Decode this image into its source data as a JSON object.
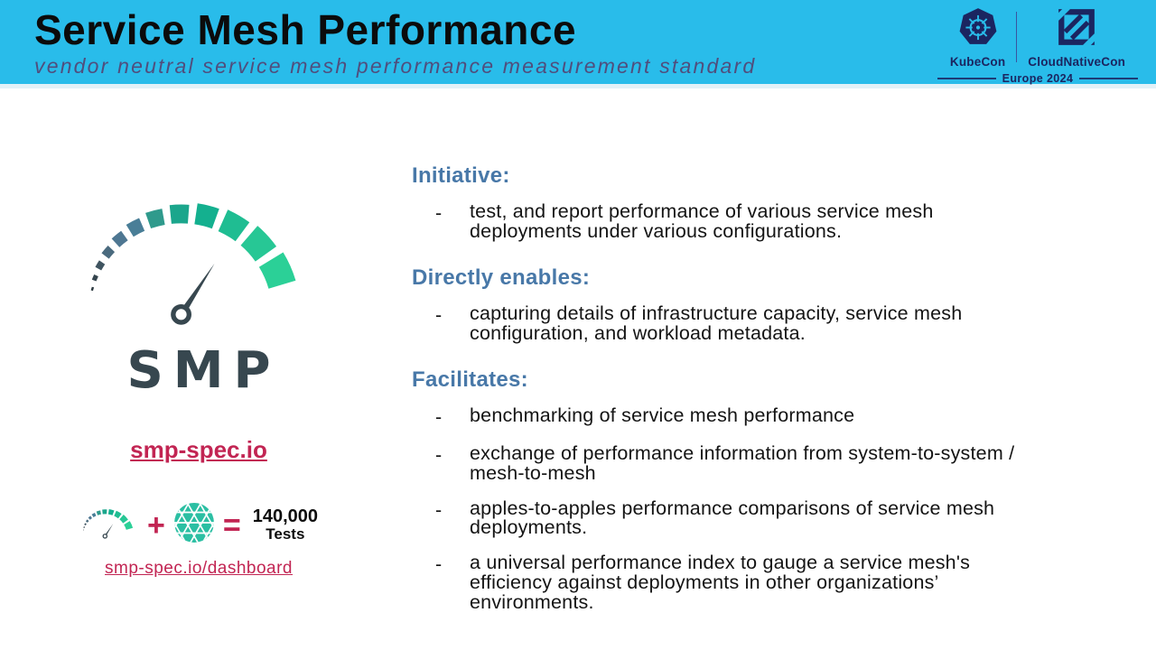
{
  "header": {
    "title": "Service Mesh Performance",
    "subtitle": "vendor neutral service mesh performance measurement standard",
    "event": {
      "kubecon_label": "KubeCon",
      "cloudnativecon_label": "CloudNativeCon",
      "edition_label": "Europe 2024"
    }
  },
  "left_panel": {
    "logo_wordmark": "SMP",
    "site_link": "smp-spec.io",
    "equation": {
      "plus_sign": "+",
      "equals_sign": "=",
      "result_value": "140,000",
      "result_unit": "Tests"
    },
    "dashboard_link": "smp-spec.io/dashboard"
  },
  "bullet_marker": "-",
  "sections": [
    {
      "heading": "Initiative:",
      "bullets": [
        "test, and report performance of various service mesh\ndeployments under various configurations."
      ]
    },
    {
      "heading": "Directly enables:",
      "bullets": [
        "capturing details of infrastructure capacity, service mesh\nconfiguration, and workload metadata."
      ]
    },
    {
      "heading": "Facilitates:",
      "bullets": [
        "benchmarking of service mesh performance",
        "exchange of performance information from system-to-system /\nmesh-to-mesh",
        "apples-to-apples performance comparisons of service mesh\ndeployments.",
        "a universal performance index to gauge a service mesh's\nefficiency against deployments in other organizations’\nenvironments."
      ]
    }
  ],
  "colors": {
    "header_background": "#29BCEA",
    "subtitle_text": "#504E7D",
    "event_navy": "#1B2560",
    "section_heading_blue": "#4878A8",
    "link_crimson": "#C22553",
    "body_text": "#141414",
    "logo_slate": "#37474F",
    "meshery_teal": "#2BBFA3",
    "gauge_segment_colors": [
      "#2E3B42",
      "#35454E",
      "#3F5460",
      "#4A6A7E",
      "#4E7792",
      "#497E97",
      "#2F9A8C",
      "#1BA68C",
      "#14B08F",
      "#1FBD92",
      "#27C795",
      "#2BD097"
    ]
  }
}
